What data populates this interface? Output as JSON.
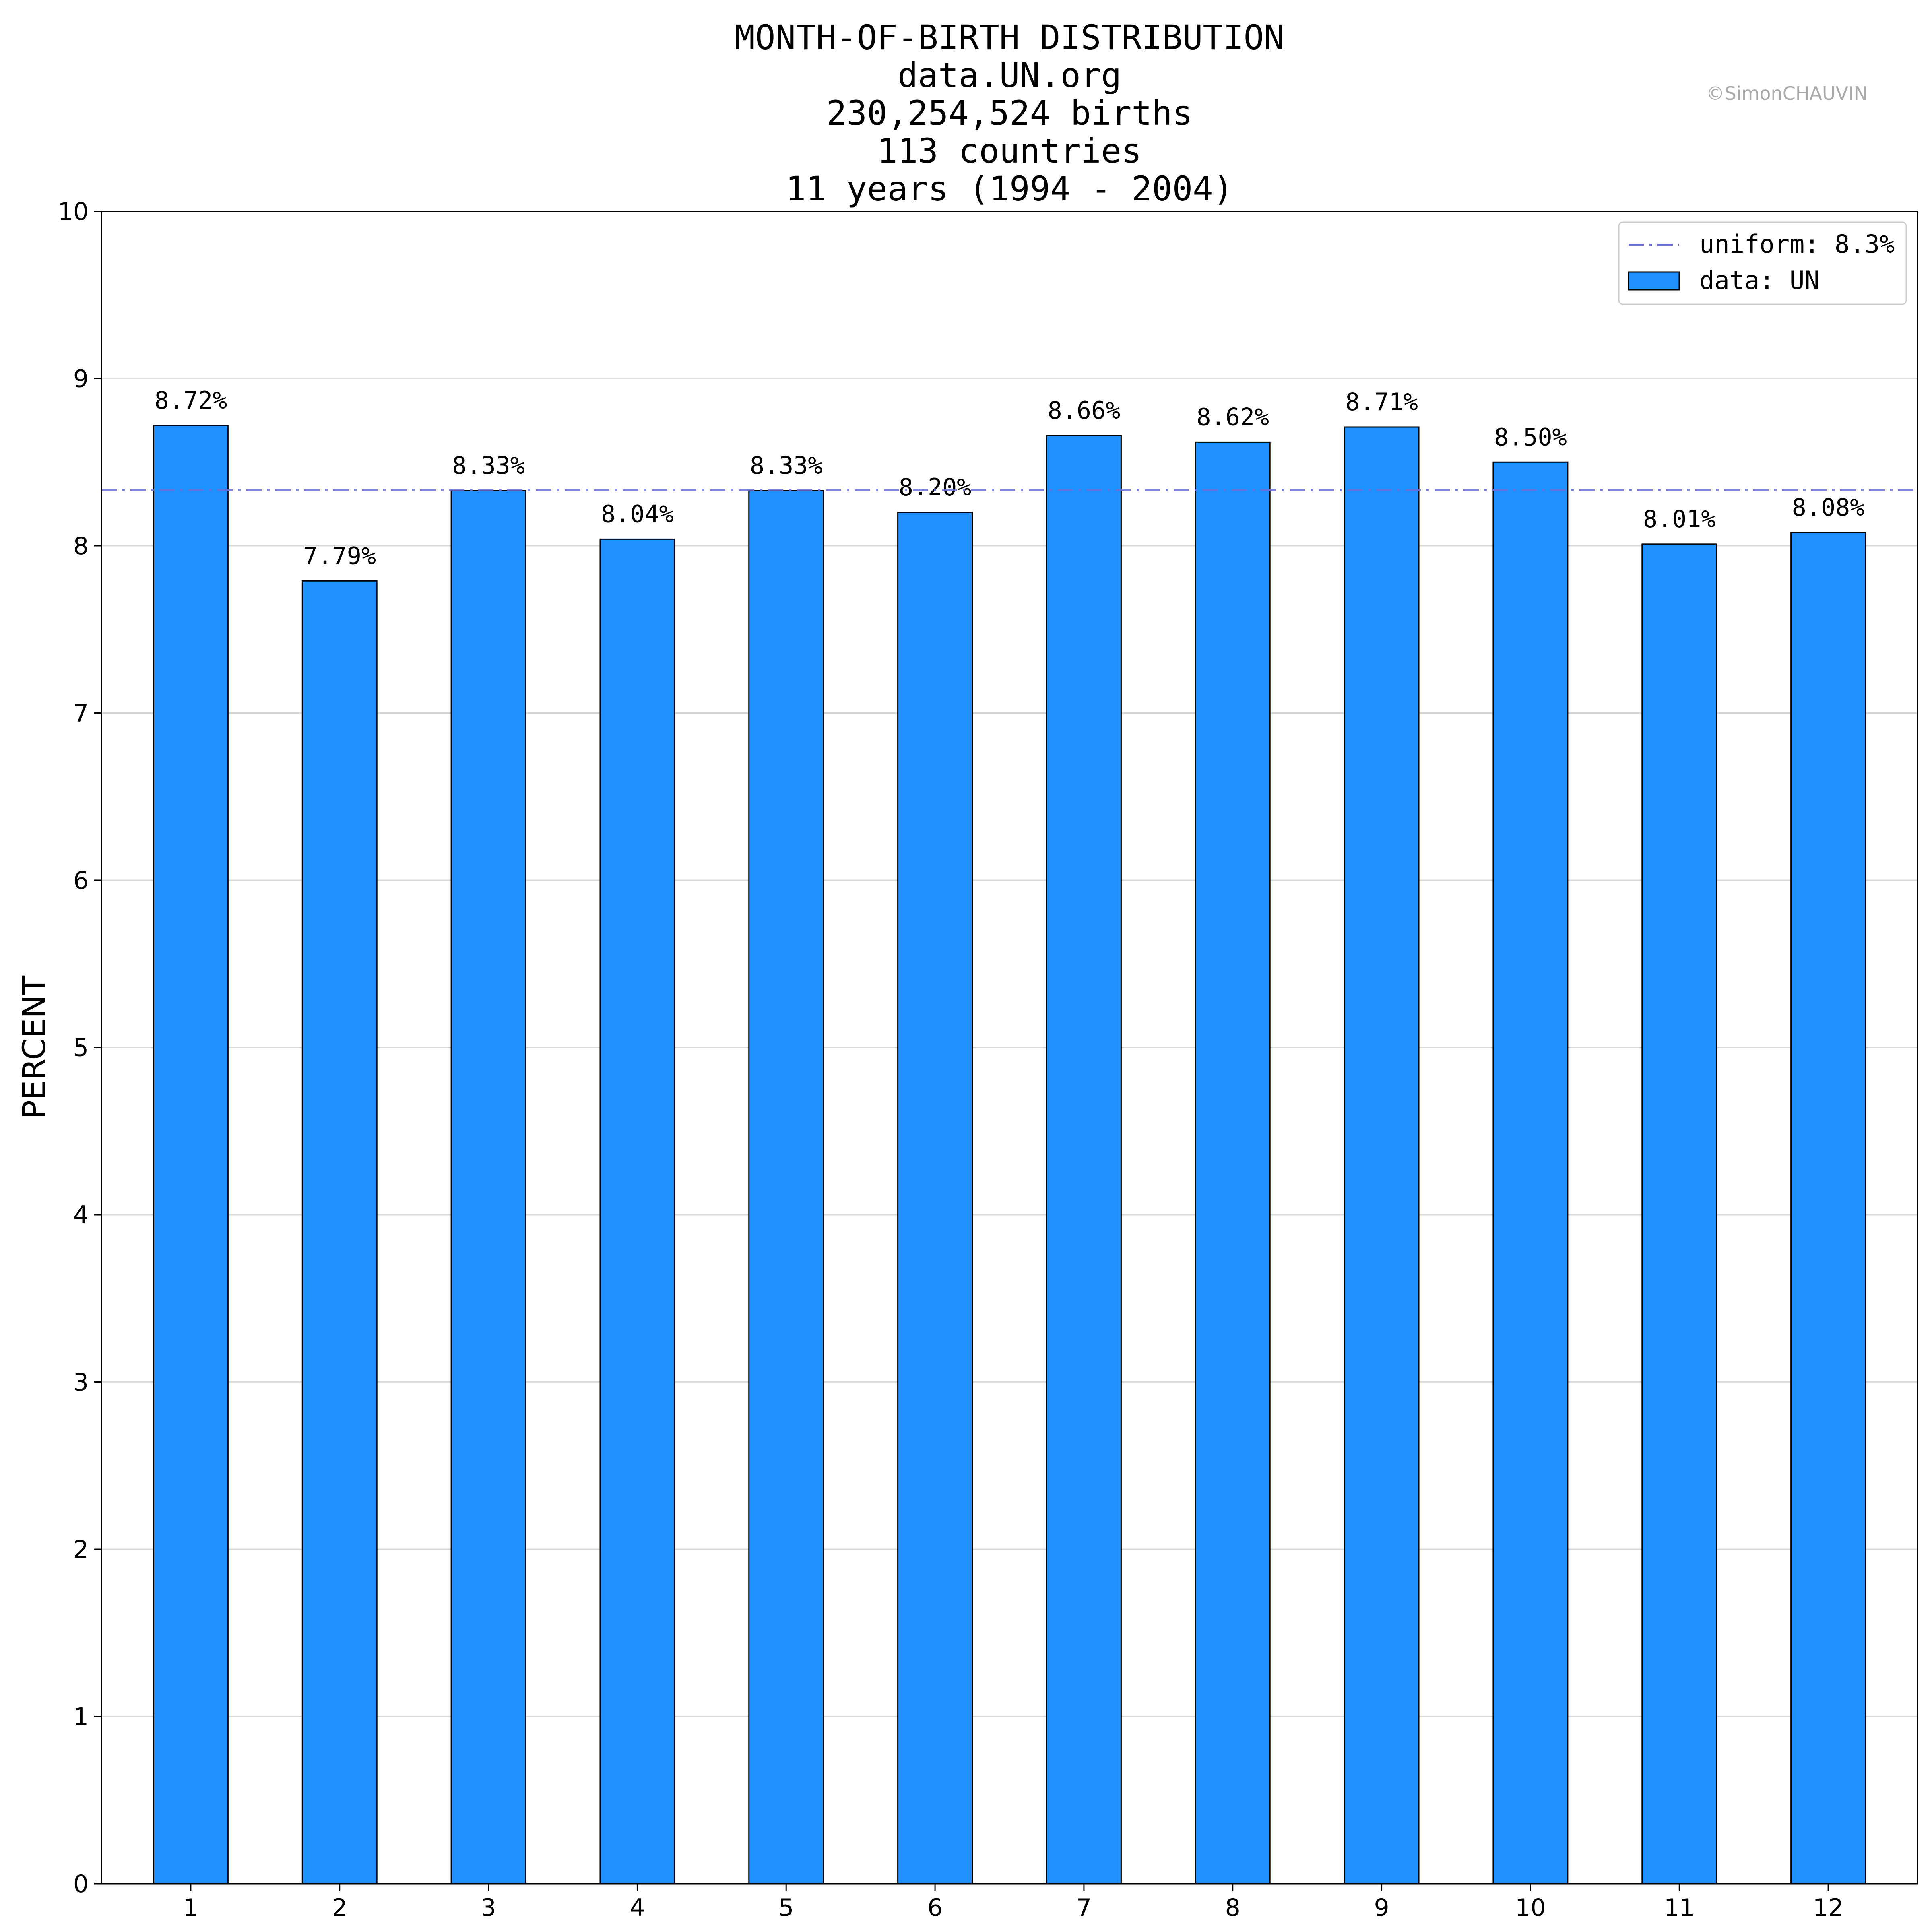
{
  "chart_data": {
    "type": "bar",
    "title_lines": [
      "MONTH-OF-BIRTH DISTRIBUTION",
      "data.UN.org",
      "230,254,524 births",
      "113 countries",
      "11 years (1994 - 2004)"
    ],
    "watermark": "©SimonCHAUVIN",
    "ylabel": "PERCENT",
    "xlabel": "",
    "categories": [
      "1",
      "2",
      "3",
      "4",
      "5",
      "6",
      "7",
      "8",
      "9",
      "10",
      "11",
      "12"
    ],
    "values": [
      8.72,
      7.79,
      8.33,
      8.04,
      8.33,
      8.2,
      8.66,
      8.62,
      8.71,
      8.5,
      8.01,
      8.08
    ],
    "data_labels": [
      "8.72%",
      "7.79%",
      "8.33%",
      "8.04%",
      "8.33%",
      "8.20%",
      "8.66%",
      "8.62%",
      "8.71%",
      "8.50%",
      "8.01%",
      "8.08%"
    ],
    "ylim": [
      0,
      10
    ],
    "yticks": [
      "0",
      "1",
      "2",
      "3",
      "4",
      "5",
      "6",
      "7",
      "8",
      "9",
      "10"
    ],
    "reference_line": {
      "name": "uniform: 8.3%",
      "value": 8.333,
      "style": "dash-dot",
      "color": "#6c6fd8"
    },
    "series": [
      {
        "name": "data: UN",
        "color": "#1e90ff"
      }
    ],
    "grid": "horizontal",
    "legend_position": "top-right"
  }
}
